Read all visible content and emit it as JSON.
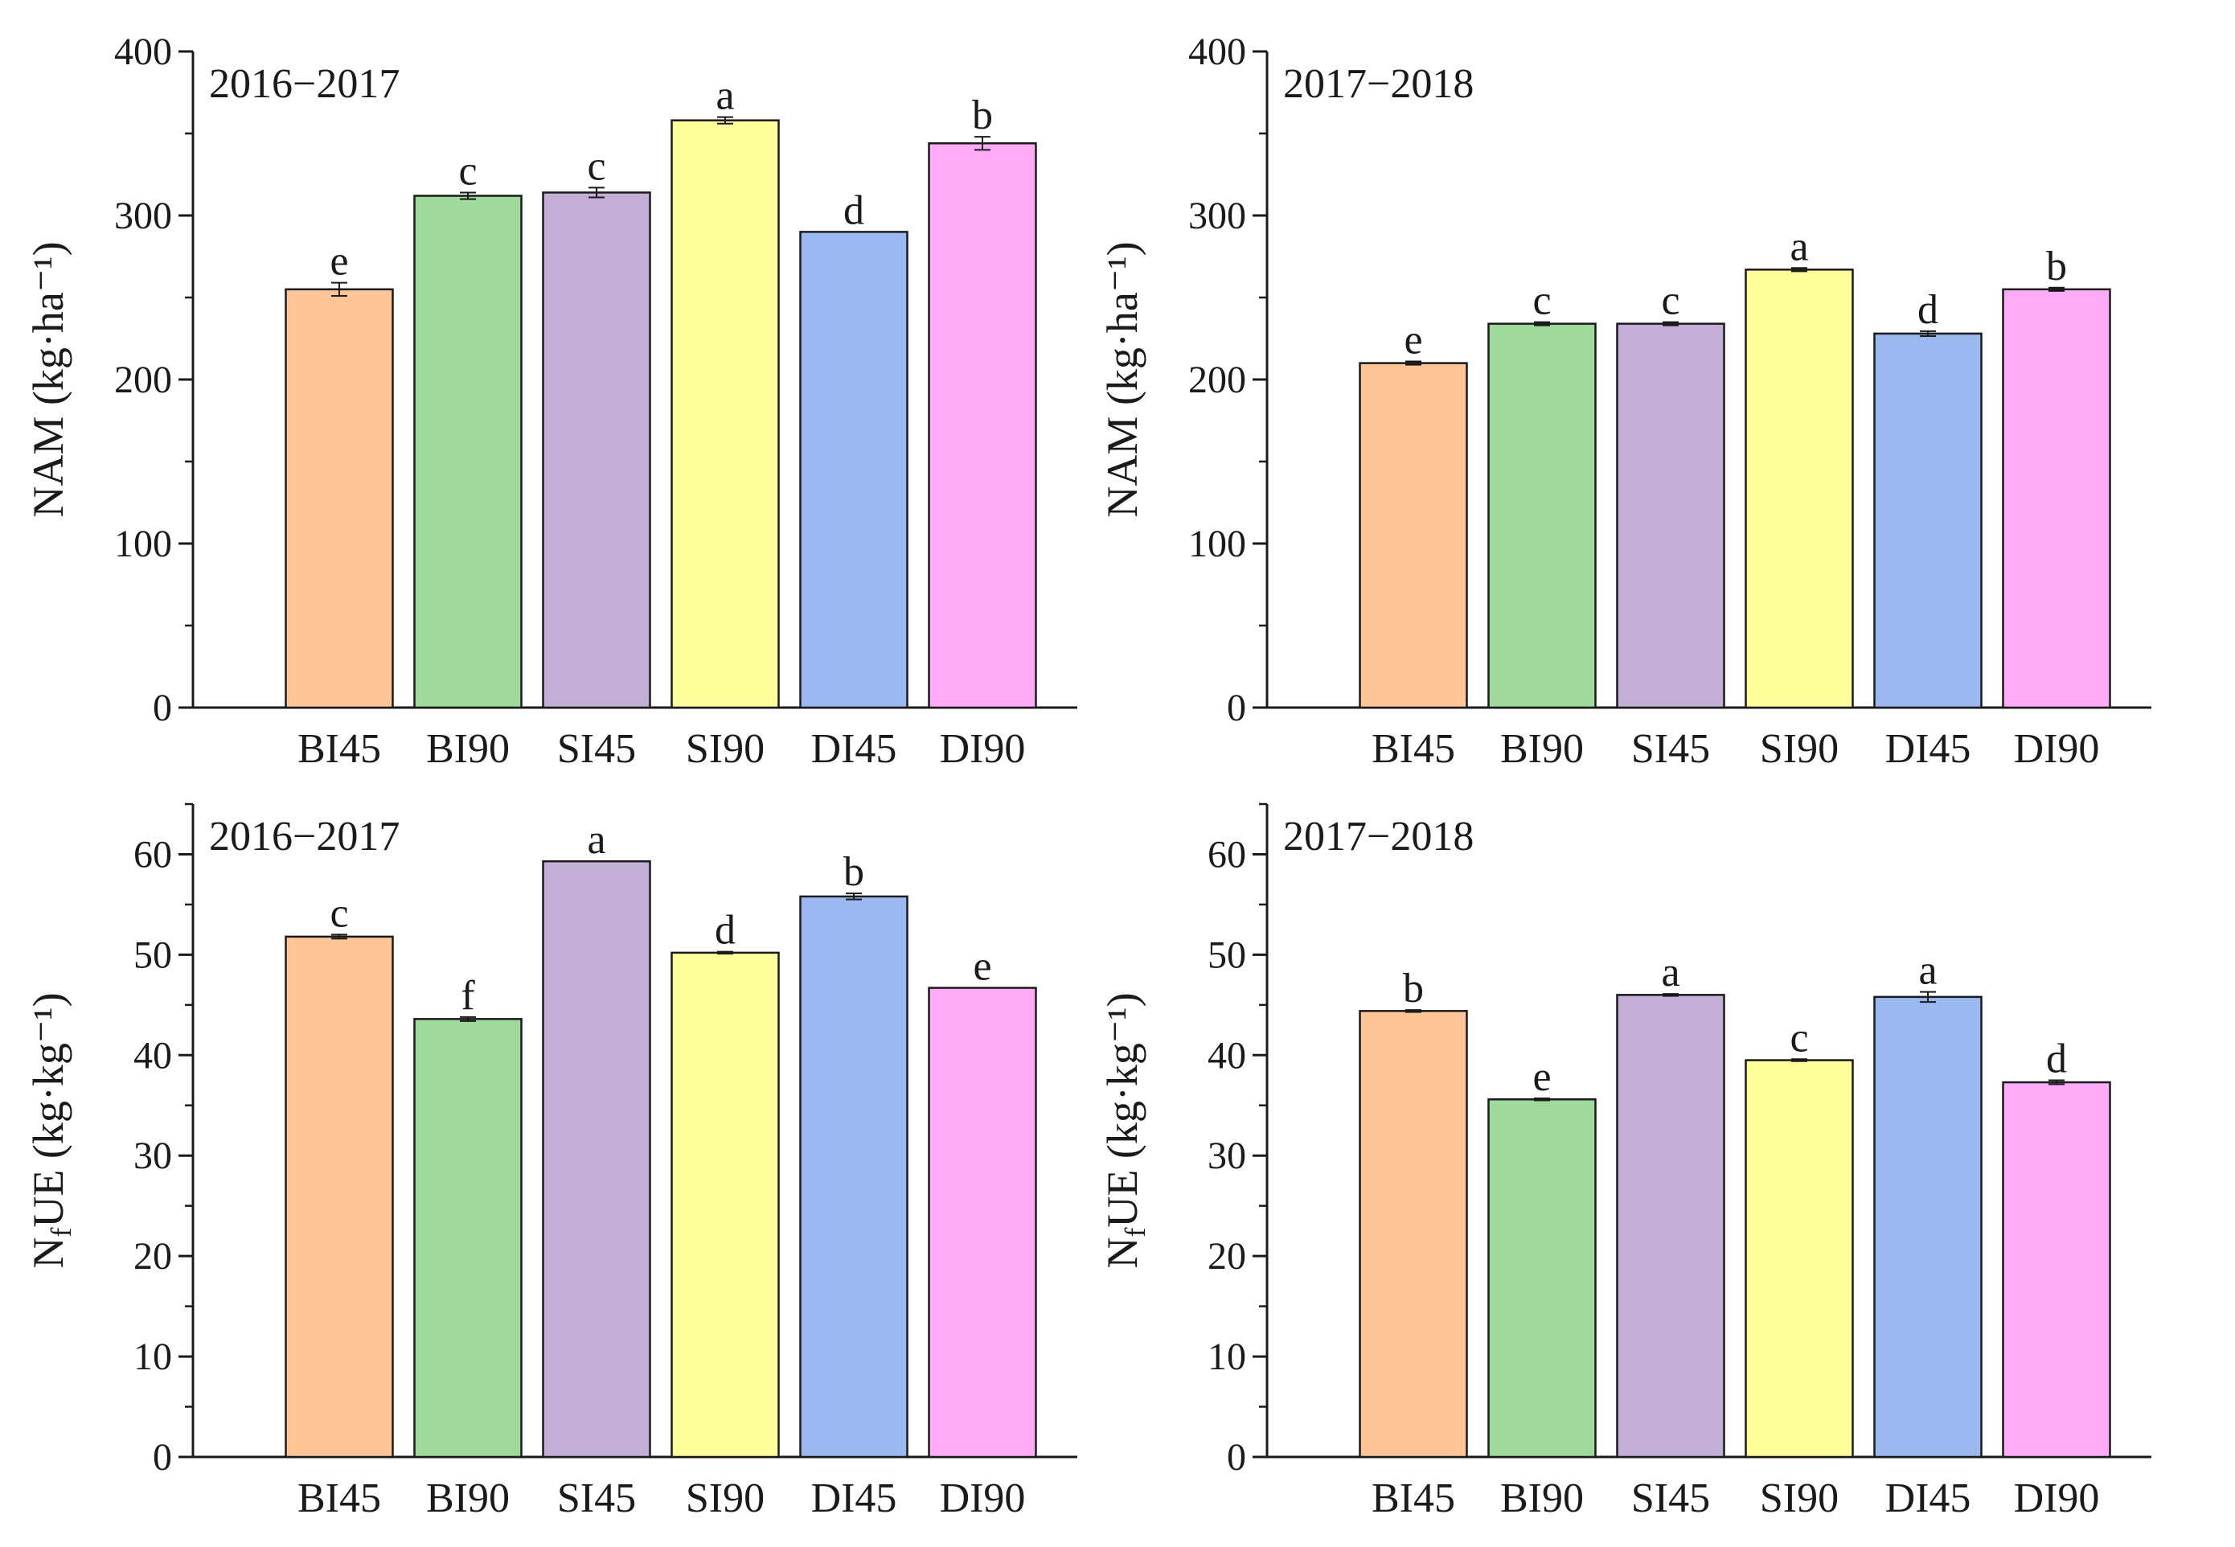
{
  "chart_data": [
    {
      "id": "nam-2016",
      "type": "bar",
      "title": "2016−2017",
      "ylabel": "NAM (kg·ha⁻¹)",
      "ylim": [
        0,
        400
      ],
      "yticks": [
        0,
        100,
        200,
        300,
        400
      ],
      "minor_step": 50,
      "categories": [
        "BI45",
        "BI90",
        "SI45",
        "SI90",
        "DI45",
        "DI90"
      ],
      "values": [
        255,
        312,
        314,
        358,
        290,
        344
      ],
      "errors": [
        4,
        2,
        3,
        2,
        0,
        4
      ],
      "letters": [
        "e",
        "c",
        "c",
        "a",
        "d",
        "b"
      ]
    },
    {
      "id": "nam-2017",
      "type": "bar",
      "title": "2017−2018",
      "ylabel": "NAM (kg·ha⁻¹)",
      "ylim": [
        0,
        400
      ],
      "yticks": [
        0,
        100,
        200,
        300,
        400
      ],
      "minor_step": 50,
      "categories": [
        "BI45",
        "BI90",
        "SI45",
        "SI90",
        "DI45",
        "DI90"
      ],
      "values": [
        210,
        234,
        234,
        267,
        228,
        255
      ],
      "errors": [
        1,
        1,
        1,
        1,
        1.5,
        1
      ],
      "letters": [
        "e",
        "c",
        "c",
        "a",
        "d",
        "b"
      ]
    },
    {
      "id": "nfue-2016",
      "type": "bar",
      "title": "2016−2017",
      "ylabel": "NfUE (kg·kg⁻¹)",
      "ylim": [
        0,
        65
      ],
      "yticks": [
        0,
        10,
        20,
        30,
        40,
        50,
        60
      ],
      "minor_step": 5,
      "categories": [
        "BI45",
        "BI90",
        "SI45",
        "SI90",
        "DI45",
        "DI90"
      ],
      "values": [
        51.8,
        43.6,
        59.3,
        50.2,
        55.8,
        46.7
      ],
      "errors": [
        0.2,
        0.2,
        0,
        0.1,
        0.3,
        0
      ],
      "letters": [
        "c",
        "f",
        "a",
        "d",
        "b",
        "e"
      ]
    },
    {
      "id": "nfue-2017",
      "type": "bar",
      "title": "2017−2018",
      "ylabel": "NfUE (kg·kg⁻¹)",
      "ylim": [
        0,
        65
      ],
      "yticks": [
        0,
        10,
        20,
        30,
        40,
        50,
        60
      ],
      "minor_step": 5,
      "categories": [
        "BI45",
        "BI90",
        "SI45",
        "SI90",
        "DI45",
        "DI90"
      ],
      "values": [
        44.4,
        35.6,
        46.0,
        39.5,
        45.8,
        37.3
      ],
      "errors": [
        0.1,
        0.1,
        0.1,
        0.1,
        0.5,
        0.2
      ],
      "letters": [
        "b",
        "e",
        "a",
        "c",
        "a",
        "d"
      ]
    }
  ],
  "colors": {
    "bars": [
      "#ffc596",
      "#9fd99b",
      "#c3aed6",
      "#ffff9c",
      "#9cb8f0",
      "#ffabf7"
    ],
    "stroke": "#1a1a1a"
  }
}
